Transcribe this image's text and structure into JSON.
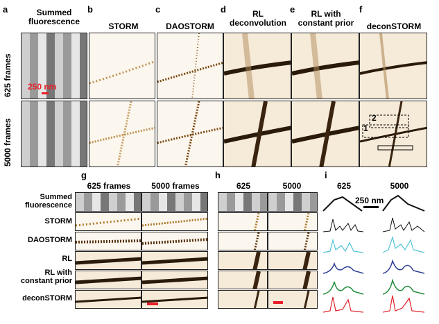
{
  "panel_letters": {
    "a": "a",
    "b": "b",
    "c": "c",
    "d": "d",
    "e": "e",
    "f": "f",
    "g": "g",
    "h": "h",
    "i": "i"
  },
  "column_titles": {
    "a": "Summed\nfluorescence",
    "b": "STORM",
    "c": "DAOSTORM",
    "d": "RL\ndeconvolution",
    "e": "RL with\nconstant prior",
    "f": "deconSTORM"
  },
  "row_labels": {
    "r1": "625 frames",
    "r2": "5000 frames"
  },
  "scale_labels": {
    "a": "250 nm",
    "i": "250 nm"
  },
  "roi_labels": {
    "one": "1",
    "two": "2"
  },
  "g": {
    "col1": "625 frames",
    "col2": "5000 frames"
  },
  "h": {
    "col1": "625",
    "col2": "5000"
  },
  "i": {
    "col1": "625",
    "col2": "5000"
  },
  "bottom_rows": [
    "Summed\nfluorescence",
    "STORM",
    "DAOSTORM",
    "RL",
    "RL with\nconstant prior",
    "deconSTORM"
  ],
  "colors": {
    "scalebar": "#e8202a",
    "profile_black": "#111111",
    "profile_cyan": "#4fc3d6",
    "profile_blue": "#2e3f94",
    "profile_green": "#1f8a3a",
    "profile_red": "#e0202a"
  }
}
